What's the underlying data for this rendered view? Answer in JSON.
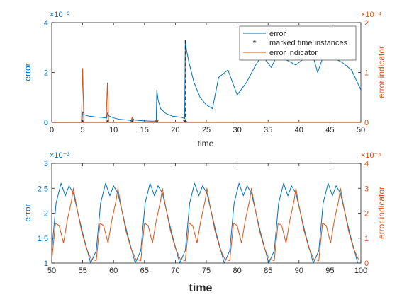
{
  "chart_data": [
    {
      "type": "line",
      "xlabel": "time",
      "ylabel_left": "error",
      "ylabel_right": "error indicator",
      "xlim": [
        0,
        50
      ],
      "ylim_left": [
        0,
        4
      ],
      "ylim_right": [
        0,
        2
      ],
      "left_exponent": "×10⁻³",
      "right_exponent": "×10⁻⁴",
      "x_ticks": [
        0,
        5,
        10,
        15,
        20,
        25,
        30,
        35,
        40,
        45,
        50
      ],
      "y_ticks_left": [
        0,
        2,
        4
      ],
      "y_ticks_right": [
        0,
        1,
        2
      ],
      "legend": {
        "position": "top-right",
        "entries": [
          "error",
          "marked time instances",
          "error indicator"
        ]
      },
      "marked_time_instances": [
        5,
        9,
        13,
        17,
        21.5
      ],
      "dashed_vertical_line_x": 21.6,
      "series": [
        {
          "name": "error",
          "axis": "left",
          "x": [
            0,
            4.9,
            5.0,
            5.3,
            6,
            7,
            8,
            8.9,
            9.0,
            9.3,
            10,
            11,
            12,
            12.9,
            13.0,
            13.3,
            14,
            15,
            16,
            16.9,
            17.0,
            17.2,
            17.6,
            18.5,
            19.5,
            21.0,
            21.5,
            21.6,
            21.8,
            22.2,
            23,
            24,
            25,
            26,
            27,
            28.5,
            30,
            31.5,
            33,
            34,
            35.5,
            36.5,
            38,
            39.5,
            40.5,
            42,
            43,
            44,
            45.5,
            47,
            48.5,
            50
          ],
          "y": [
            0,
            0,
            0.42,
            0.3,
            0.25,
            0.22,
            0.2,
            0.18,
            0.38,
            0.25,
            0.18,
            0.12,
            0.1,
            0.08,
            0.2,
            0.1,
            0.08,
            0.06,
            0.05,
            0.05,
            1.3,
            0.9,
            0.55,
            0.35,
            0.25,
            0.2,
            0.15,
            3.3,
            2.9,
            2.4,
            1.6,
            1.0,
            0.7,
            0.55,
            1.8,
            2.1,
            1.1,
            1.6,
            2.3,
            2.7,
            2.2,
            2.7,
            2.5,
            2.3,
            2.5,
            2.9,
            2.0,
            2.7,
            2.6,
            2.4,
            2.1,
            1.3
          ]
        },
        {
          "name": "error indicator",
          "axis": "right",
          "x": [
            0,
            4.8,
            5.0,
            5.2,
            8.8,
            9.0,
            9.2,
            12.8,
            13.0,
            13.2,
            16.8,
            17.0,
            17.2,
            21.3,
            21.6,
            22.0,
            50
          ],
          "y": [
            0.005,
            0.005,
            1.08,
            0.005,
            0.005,
            0.79,
            0.005,
            0.005,
            0.1,
            0.005,
            0.005,
            0.06,
            0.005,
            0.005,
            0.03,
            0.005,
            0.005
          ]
        }
      ]
    },
    {
      "type": "line",
      "xlabel": "time",
      "ylabel_left": "error",
      "ylabel_right": "error indicator",
      "xlim": [
        50,
        100
      ],
      "ylim_left": [
        1,
        3
      ],
      "ylim_right": [
        0,
        4
      ],
      "left_exponent": "×10⁻³",
      "right_exponent": "×10⁻⁶",
      "x_ticks": [
        50,
        55,
        60,
        65,
        70,
        75,
        80,
        85,
        90,
        95,
        100
      ],
      "y_ticks_left": [
        1,
        1.5,
        2,
        2.5,
        3
      ],
      "y_ticks_right": [
        0,
        1,
        2,
        3,
        4
      ],
      "period": 7.2,
      "series": [
        {
          "name": "error",
          "axis": "left",
          "cycle_t": [
            0,
            0.7,
            1.5,
            2.2,
            2.8,
            3.5,
            5.0,
            6.3,
            7.2
          ],
          "cycle_y": [
            1.25,
            2.2,
            2.6,
            2.35,
            2.55,
            2.4,
            1.6,
            1.0,
            1.25
          ],
          "phase": 50
        },
        {
          "name": "error indicator",
          "axis": "right",
          "cycle_t": [
            0,
            0.6,
            1.2,
            1.9,
            2.5,
            3.2,
            3.5,
            4.0,
            4.8,
            5.6,
            6.4,
            7.2
          ],
          "cycle_y": [
            0.1,
            1.6,
            1.5,
            0.8,
            1.7,
            2.5,
            3.0,
            2.3,
            1.3,
            0.6,
            0.15,
            0.1
          ],
          "phase": 50
        }
      ]
    }
  ],
  "colors": {
    "blue": "#0072BD",
    "orange": "#D95319",
    "black": "#262626"
  }
}
